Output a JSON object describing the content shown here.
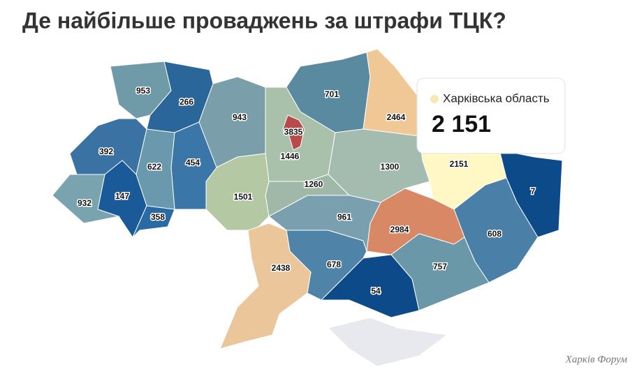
{
  "title": "Де найбільше проваджень за штрафи ТЦК?",
  "regions": [
    {
      "value": 953,
      "color": "#6f9aa8"
    },
    {
      "value": 266,
      "color": "#2a6699"
    },
    {
      "value": 943,
      "color": "#7a9fab"
    },
    {
      "value": 1446,
      "color": "#a9c1aa"
    },
    {
      "value": 3835,
      "color": "#b84a4a"
    },
    {
      "value": 701,
      "color": "#5a8aa0"
    },
    {
      "value": 2464,
      "color": "#f0c896"
    },
    {
      "value": 2151,
      "color": "#fff8c4"
    },
    {
      "value": 7,
      "color": "#0d4a8a"
    },
    {
      "value": 608,
      "color": "#4a80a8"
    },
    {
      "value": 1300,
      "color": "#a4bcb0"
    },
    {
      "value": 2984,
      "color": "#d98866"
    },
    {
      "value": 757,
      "color": "#6a98a8"
    },
    {
      "value": 54,
      "color": "#0d4a8a"
    },
    {
      "value": 678,
      "color": "#4f84a8"
    },
    {
      "value": 961,
      "color": "#7aa0b0"
    },
    {
      "value": 1260,
      "color": "#a0b8a8"
    },
    {
      "value": 1501,
      "color": "#b4c8a4"
    },
    {
      "value": 2438,
      "color": "#ebc69a"
    },
    {
      "value": 454,
      "color": "#3a76a8"
    },
    {
      "value": 622,
      "color": "#6a98ac"
    },
    {
      "value": 392,
      "color": "#3a72a4"
    },
    {
      "value": 147,
      "color": "#1a5a98"
    },
    {
      "value": 358,
      "color": "#2a6aa4"
    },
    {
      "value": 932,
      "color": "#7aa3b0"
    }
  ],
  "tooltip": {
    "name": "Харківська область",
    "value": "2 151"
  },
  "watermark": "Харків Форум"
}
